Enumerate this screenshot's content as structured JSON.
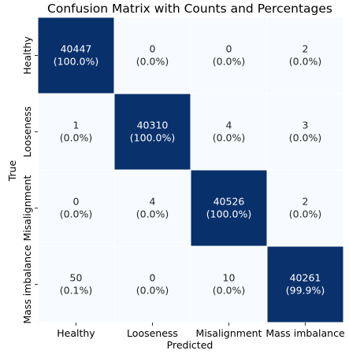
{
  "chart_data": {
    "type": "heatmap",
    "title": "Confusion Matrix with Counts and Percentages",
    "xlabel": "Predicted",
    "ylabel": "True",
    "x_categories": [
      "Healthy",
      "Looseness",
      "Misalignment",
      "Mass imbalance"
    ],
    "y_categories": [
      "Healthy",
      "Looseness",
      "Misalignment",
      "Mass imbalance"
    ],
    "counts": [
      [
        40447,
        0,
        0,
        2
      ],
      [
        1,
        40310,
        4,
        3
      ],
      [
        0,
        4,
        40526,
        2
      ],
      [
        50,
        0,
        10,
        40261
      ]
    ],
    "percent_labels": [
      [
        "(100.0%)",
        "(0.0%)",
        "(0.0%)",
        "(0.0%)"
      ],
      [
        "(0.0%)",
        "(100.0%)",
        "(0.0%)",
        "(0.0%)"
      ],
      [
        "(0.0%)",
        "(0.0%)",
        "(100.0%)",
        "(0.0%)"
      ],
      [
        "(0.1%)",
        "(0.0%)",
        "(0.0%)",
        "(99.9%)"
      ]
    ],
    "colormap": {
      "low": "#f7fbff",
      "high": "#08306b"
    },
    "colorbar": false,
    "grid": false
  }
}
